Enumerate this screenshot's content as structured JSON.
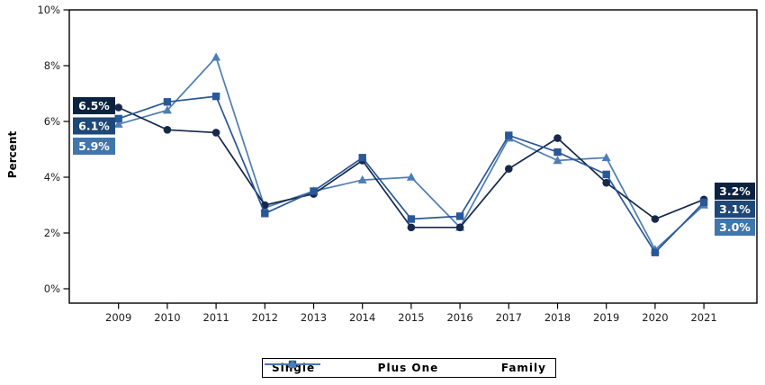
{
  "chart_data": {
    "type": "line",
    "title": "",
    "ylabel": "Percent",
    "xlabel": "",
    "grid": false,
    "legend_position": "bottom",
    "x": [
      "2009",
      "2010",
      "2011",
      "2012",
      "2013",
      "2014",
      "2015",
      "2016",
      "2017",
      "2018",
      "2019",
      "2020",
      "2021"
    ],
    "y_axis": {
      "range": [
        0,
        10
      ],
      "ticks": [
        0,
        2,
        4,
        6,
        8,
        10
      ],
      "tick_labels": [
        "0%",
        "2%",
        "4%",
        "6%",
        "8%",
        "10%"
      ]
    },
    "series": [
      {
        "name": "Single",
        "marker": "circle",
        "color": "#16294a",
        "values": [
          6.5,
          5.7,
          5.6,
          3.0,
          3.4,
          4.6,
          2.2,
          2.2,
          4.3,
          5.4,
          3.8,
          2.5,
          3.2
        ]
      },
      {
        "name": "Plus One",
        "marker": "square",
        "color": "#2a5798",
        "values": [
          6.1,
          6.7,
          6.9,
          2.7,
          3.5,
          4.7,
          2.5,
          2.6,
          5.5,
          4.9,
          4.1,
          1.3,
          3.1
        ]
      },
      {
        "name": "Family",
        "marker": "triangle",
        "color": "#4d7db5",
        "values": [
          5.9,
          6.4,
          8.3,
          2.9,
          3.5,
          3.9,
          4.0,
          2.2,
          5.4,
          4.6,
          4.7,
          1.4,
          3.0
        ]
      }
    ],
    "annotations": {
      "left": [
        {
          "text": "6.5%",
          "bg": "#0b2240"
        },
        {
          "text": "6.1%",
          "bg": "#1e4877"
        },
        {
          "text": "5.9%",
          "bg": "#4176ad"
        }
      ],
      "right": [
        {
          "text": "3.2%",
          "bg": "#0b2240"
        },
        {
          "text": "3.1%",
          "bg": "#1e4877"
        },
        {
          "text": "3.0%",
          "bg": "#4176ad"
        }
      ]
    }
  }
}
